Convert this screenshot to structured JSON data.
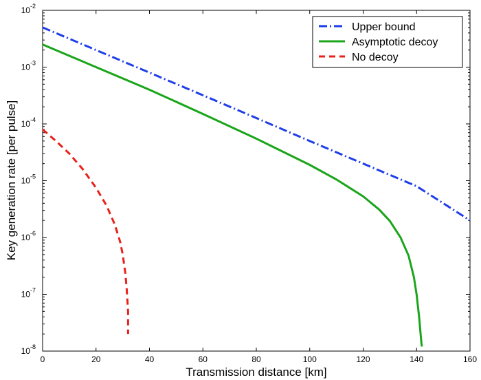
{
  "chart_data": {
    "type": "line",
    "title": "",
    "xlabel": "Transmission distance [km]",
    "ylabel": "Key generation rate [per pulse]",
    "xlim": [
      0,
      160
    ],
    "ylim": [
      1e-08,
      0.01
    ],
    "yscale": "log",
    "grid": false,
    "legend_position": "top-right",
    "x_ticks": [
      0,
      20,
      40,
      60,
      80,
      100,
      120,
      140,
      160
    ],
    "x_tick_labels": [
      "0",
      "20",
      "40",
      "60",
      "80",
      "100",
      "120",
      "140",
      "160"
    ],
    "y_ticks": [
      {
        "value": 1e-08,
        "base": "10",
        "exp": "-8"
      },
      {
        "value": 1e-07,
        "base": "10",
        "exp": "-7"
      },
      {
        "value": 1e-06,
        "base": "10",
        "exp": "-6"
      },
      {
        "value": 1e-05,
        "base": "10",
        "exp": "-5"
      },
      {
        "value": 0.0001,
        "base": "10",
        "exp": "-4"
      },
      {
        "value": 0.001,
        "base": "10",
        "exp": "-3"
      },
      {
        "value": 0.01,
        "base": "10",
        "exp": "-2"
      }
    ],
    "series": [
      {
        "name": "Upper bound",
        "color": "#1f3ee8",
        "style": "dash-dot",
        "x": [
          0,
          20,
          40,
          60,
          80,
          100,
          120,
          140,
          160
        ],
        "y": [
          0.005,
          0.002,
          0.0008,
          0.00032,
          0.000127,
          5e-05,
          2e-05,
          8e-06,
          2e-06
        ]
      },
      {
        "name": "Asymptotic decoy",
        "color": "#1aa51a",
        "style": "solid",
        "x": [
          0,
          20,
          40,
          60,
          80,
          100,
          110,
          120,
          126,
          130,
          134,
          137,
          139,
          140,
          141,
          141.5,
          141.8,
          142
        ],
        "y": [
          0.0025,
          0.001,
          0.0004,
          0.00015,
          5.5e-05,
          1.9e-05,
          1.05e-05,
          5.3e-06,
          3.1e-06,
          1.95e-06,
          1e-06,
          4.8e-07,
          2e-07,
          1e-07,
          3.8e-08,
          2e-08,
          1.4e-08,
          1.2e-08
        ]
      },
      {
        "name": "No decoy",
        "color": "#e8211a",
        "style": "dashed",
        "x": [
          0,
          5,
          10,
          15,
          20,
          24,
          27,
          29,
          30,
          31,
          31.5,
          32,
          32
        ],
        "y": [
          8e-05,
          5e-05,
          3e-05,
          1.6e-05,
          7.5e-06,
          3.6e-06,
          1.7e-06,
          8.5e-07,
          5e-07,
          2.3e-07,
          1.2e-07,
          5e-08,
          2e-08
        ]
      }
    ]
  }
}
